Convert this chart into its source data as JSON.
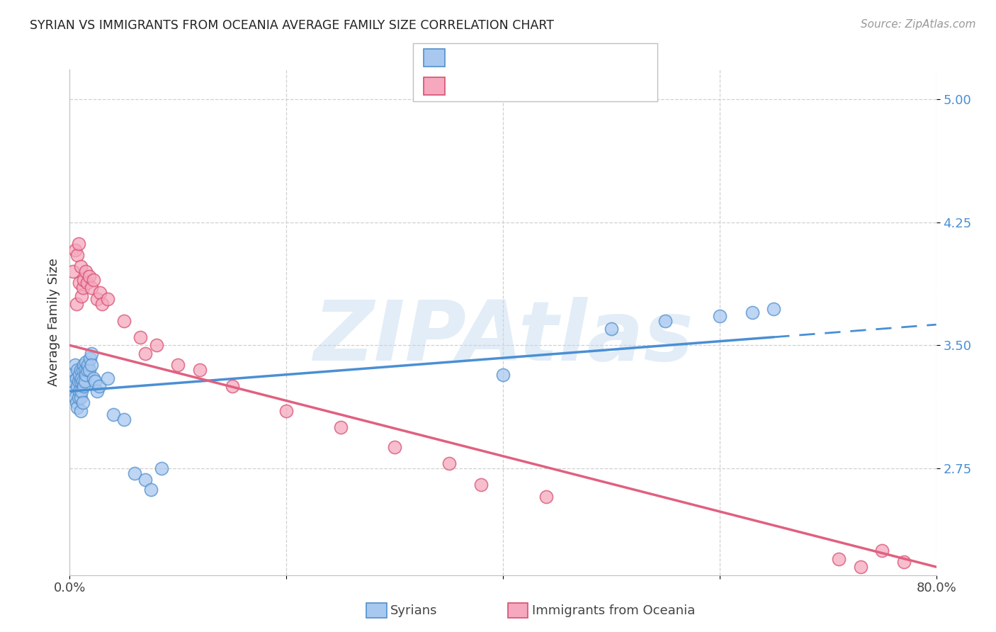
{
  "title": "SYRIAN VS IMMIGRANTS FROM OCEANIA AVERAGE FAMILY SIZE CORRELATION CHART",
  "source": "Source: ZipAtlas.com",
  "ylabel": "Average Family Size",
  "yticks": [
    2.75,
    3.5,
    4.25,
    5.0
  ],
  "ytick_labels": [
    "2.75",
    "3.50",
    "4.25",
    "5.00"
  ],
  "ymin": 2.1,
  "ymax": 5.18,
  "xmin": 0.0,
  "xmax": 80.0,
  "blue_fill": "#A8C8F0",
  "blue_edge": "#5090CC",
  "pink_fill": "#F5A8BE",
  "pink_edge": "#D85070",
  "trend_blue_color": "#4A8FD4",
  "trend_pink_color": "#E06080",
  "watermark": "ZIPAtlas",
  "watermark_color": "#C0D8EE",
  "legend_text_color": "#3A7AC8",
  "syrians_x": [
    0.2,
    0.3,
    0.4,
    0.5,
    0.5,
    0.6,
    0.6,
    0.7,
    0.7,
    0.7,
    0.8,
    0.8,
    0.9,
    0.9,
    1.0,
    1.0,
    1.0,
    1.0,
    1.1,
    1.1,
    1.2,
    1.2,
    1.2,
    1.3,
    1.3,
    1.4,
    1.4,
    1.5,
    1.5,
    1.6,
    1.7,
    1.8,
    1.9,
    2.0,
    2.0,
    2.2,
    2.3,
    2.5,
    2.7,
    3.5,
    4.0,
    5.0,
    6.0,
    7.0,
    7.5,
    8.5,
    40.0,
    50.0,
    55.0,
    60.0,
    63.0,
    65.0
  ],
  "syrians_y": [
    3.32,
    3.28,
    3.22,
    3.38,
    3.18,
    3.3,
    3.15,
    3.35,
    3.25,
    3.12,
    3.28,
    3.18,
    3.32,
    3.22,
    3.35,
    3.28,
    3.18,
    3.1,
    3.3,
    3.22,
    3.35,
    3.28,
    3.15,
    3.38,
    3.25,
    3.35,
    3.28,
    3.4,
    3.32,
    3.35,
    3.38,
    3.35,
    3.42,
    3.45,
    3.38,
    3.3,
    3.28,
    3.22,
    3.25,
    3.3,
    3.08,
    3.05,
    2.72,
    2.68,
    2.62,
    2.75,
    3.32,
    3.6,
    3.65,
    3.68,
    3.7,
    3.72
  ],
  "oceania_x": [
    0.3,
    0.5,
    0.6,
    0.7,
    0.8,
    0.9,
    1.0,
    1.1,
    1.2,
    1.3,
    1.5,
    1.6,
    1.8,
    2.0,
    2.2,
    2.5,
    2.8,
    3.0,
    3.5,
    5.0,
    6.5,
    7.0,
    8.0,
    10.0,
    12.0,
    15.0,
    20.0,
    25.0,
    30.0,
    35.0,
    38.0,
    44.0,
    71.0,
    73.0,
    75.0,
    77.0
  ],
  "oceania_y": [
    3.95,
    4.08,
    3.75,
    4.05,
    4.12,
    3.88,
    3.98,
    3.8,
    3.85,
    3.9,
    3.95,
    3.88,
    3.92,
    3.85,
    3.9,
    3.78,
    3.82,
    3.75,
    3.78,
    3.65,
    3.55,
    3.45,
    3.5,
    3.38,
    3.35,
    3.25,
    3.1,
    3.0,
    2.88,
    2.78,
    2.65,
    2.58,
    2.2,
    2.15,
    2.25,
    2.18
  ]
}
